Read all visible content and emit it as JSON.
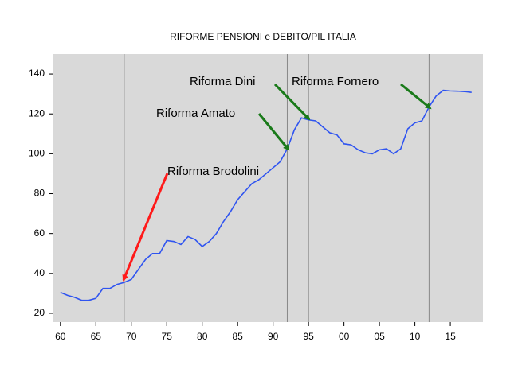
{
  "chart_data": {
    "type": "line",
    "title": "RIFORME PENSIONI e  DEBITO/PIL ITALIA",
    "x": [
      1960,
      1961,
      1962,
      1963,
      1964,
      1965,
      1966,
      1967,
      1968,
      1969,
      1970,
      1971,
      1972,
      1973,
      1974,
      1975,
      1976,
      1977,
      1978,
      1979,
      1980,
      1981,
      1982,
      1983,
      1984,
      1985,
      1986,
      1987,
      1988,
      1989,
      1990,
      1991,
      1992,
      1993,
      1994,
      1995,
      1996,
      1997,
      1998,
      1999,
      2000,
      2001,
      2002,
      2003,
      2004,
      2005,
      2006,
      2007,
      2008,
      2009,
      2010,
      2011,
      2012,
      2013,
      2014,
      2015,
      2016,
      2017,
      2018
    ],
    "series": [
      {
        "color": "#2f54f0",
        "values": [
          30.5,
          29,
          28,
          26.5,
          26.5,
          27.5,
          32.5,
          32.5,
          34.5,
          35.5,
          37,
          42,
          47,
          50,
          50,
          56.5,
          56,
          54.5,
          58.5,
          57,
          53.5,
          56,
          60,
          66,
          71,
          77,
          81,
          85,
          87,
          90,
          93,
          96,
          102.5,
          112,
          118,
          117,
          116.5,
          113.5,
          110.5,
          109.5,
          105,
          104.5,
          102,
          100.5,
          100,
          102,
          102.5,
          100,
          102.5,
          112.5,
          115.5,
          116.5,
          123.5,
          129,
          131.8,
          131.5,
          131.4,
          131.2,
          130.8
        ]
      }
    ],
    "xlim": [
      1958.9,
      2019.6
    ],
    "ylim": [
      15.6,
      150
    ],
    "xticks": [
      {
        "value": 1960,
        "label": "60"
      },
      {
        "value": 1965,
        "label": "65"
      },
      {
        "value": 1970,
        "label": "70"
      },
      {
        "value": 1975,
        "label": "75"
      },
      {
        "value": 1980,
        "label": "80"
      },
      {
        "value": 1985,
        "label": "85"
      },
      {
        "value": 1990,
        "label": "90"
      },
      {
        "value": 1995,
        "label": "95"
      },
      {
        "value": 2000,
        "label": "00"
      },
      {
        "value": 2005,
        "label": "05"
      },
      {
        "value": 2010,
        "label": "10"
      },
      {
        "value": 2015,
        "label": "15"
      }
    ],
    "yticks": [
      20,
      40,
      60,
      80,
      100,
      120,
      140
    ],
    "reference_lines": [
      1969,
      1992,
      1995,
      2012
    ],
    "annotations": [
      {
        "text": "Riforma Dini",
        "color": "#1a7a1a"
      },
      {
        "text": "Riforma Fornero",
        "color": "#1a7a1a"
      },
      {
        "text": "Riforma Amato",
        "color": "#1a7a1a"
      },
      {
        "text": "Riforma Brodolini",
        "color": "#ff1a1a"
      }
    ]
  }
}
